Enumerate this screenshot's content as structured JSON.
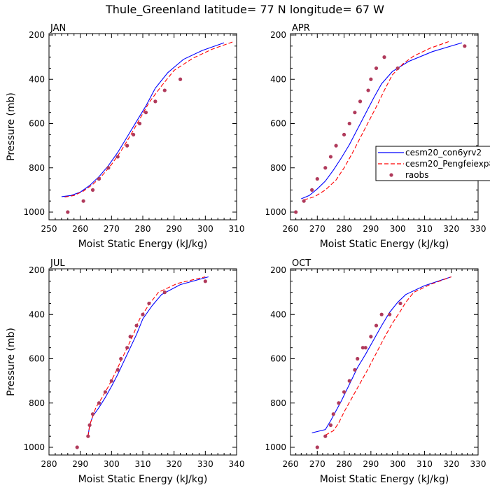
{
  "figure": {
    "title": "Thule_Greenland  latitude= 77 N longitude= 67 W"
  },
  "legend": {
    "entries": [
      {
        "label": "cesm20_con6yrv2",
        "color": "#0000ff",
        "style": "solid"
      },
      {
        "label": "cesm20_Pengfeiexp8",
        "color": "#ff0000",
        "style": "dashed"
      },
      {
        "label": "raobs",
        "color": "#b03a5b",
        "style": "dots"
      }
    ],
    "placement": "right-middle of APR panel"
  },
  "chart_data": [
    {
      "type": "line",
      "panel_label": "JAN",
      "xlabel": "Moist Static Energy (kJ/kg)",
      "ylabel": "Pressure (mb)",
      "xlim": [
        250,
        310
      ],
      "ylim": [
        1000,
        200
      ],
      "xticks": [
        250,
        260,
        270,
        280,
        290,
        300,
        310
      ],
      "yticks": [
        200,
        400,
        600,
        800,
        1000
      ],
      "series": [
        {
          "name": "cesm20_con6yrv2",
          "x": [
            254,
            257,
            260,
            263,
            266,
            269,
            272,
            275,
            278,
            281,
            284,
            288,
            293,
            299,
            306
          ],
          "y": [
            930,
            925,
            910,
            880,
            840,
            790,
            730,
            660,
            590,
            520,
            440,
            370,
            310,
            270,
            235
          ]
        },
        {
          "name": "cesm20_Pengfeiexp8",
          "x": [
            255,
            258,
            261,
            264,
            267,
            270,
            273,
            276,
            279,
            282,
            286,
            290,
            296,
            302,
            309
          ],
          "y": [
            932,
            925,
            905,
            875,
            835,
            785,
            725,
            655,
            580,
            505,
            430,
            360,
            305,
            265,
            230
          ]
        },
        {
          "name": "raobs",
          "x": [
            256,
            261,
            264,
            266,
            269,
            272,
            275,
            277,
            279,
            281,
            284,
            287,
            292
          ],
          "y": [
            1000,
            950,
            900,
            850,
            800,
            750,
            700,
            650,
            600,
            550,
            500,
            450,
            400
          ]
        }
      ]
    },
    {
      "type": "line",
      "panel_label": "APR",
      "xlabel": "Moist Static Energy (kJ/kg)",
      "ylabel": "",
      "xlim": [
        260,
        330
      ],
      "ylim": [
        1000,
        200
      ],
      "xticks": [
        260,
        270,
        280,
        290,
        300,
        310,
        320,
        330
      ],
      "yticks": [
        200,
        400,
        600,
        800,
        1000
      ],
      "series": [
        {
          "name": "cesm20_con6yrv2",
          "x": [
            264,
            267,
            270,
            273,
            276,
            279,
            282,
            285,
            288,
            291,
            294,
            298,
            304,
            313,
            324
          ],
          "y": [
            940,
            925,
            895,
            860,
            810,
            755,
            695,
            625,
            555,
            485,
            420,
            365,
            320,
            275,
            235
          ]
        },
        {
          "name": "cesm20_Pengfeiexp8",
          "x": [
            265,
            269,
            273,
            277,
            280,
            283,
            286,
            289,
            292,
            295,
            298,
            302,
            306,
            312,
            319
          ],
          "y": [
            945,
            930,
            900,
            855,
            800,
            735,
            665,
            595,
            525,
            450,
            380,
            330,
            295,
            260,
            230
          ]
        },
        {
          "name": "raobs",
          "x": [
            262,
            265,
            268,
            270,
            273,
            275,
            277,
            280,
            282,
            284,
            286,
            289,
            290,
            292,
            295,
            300,
            325
          ],
          "y": [
            1000,
            950,
            900,
            850,
            800,
            750,
            700,
            650,
            600,
            550,
            500,
            450,
            400,
            350,
            300,
            350,
            250
          ]
        }
      ]
    },
    {
      "type": "line",
      "panel_label": "JUL",
      "xlabel": "Moist Static Energy (kJ/kg)",
      "ylabel": "Pressure (mb)",
      "xlim": [
        280,
        340
      ],
      "ylim": [
        1000,
        200
      ],
      "xticks": [
        280,
        290,
        300,
        310,
        320,
        330,
        340
      ],
      "yticks": [
        200,
        400,
        600,
        800,
        1000
      ],
      "series": [
        {
          "name": "cesm20_con6yrv2",
          "x": [
            292.5,
            293,
            294,
            296,
            298,
            300,
            302,
            304,
            306,
            308,
            310,
            313,
            316,
            322,
            331
          ],
          "y": [
            950,
            900,
            860,
            820,
            775,
            725,
            670,
            610,
            550,
            490,
            420,
            360,
            310,
            265,
            230
          ]
        },
        {
          "name": "cesm20_Pengfeiexp8",
          "x": [
            292.5,
            293,
            294,
            295,
            297,
            299,
            301,
            303,
            305,
            307,
            309,
            312,
            315,
            321,
            330
          ],
          "y": [
            950,
            900,
            860,
            820,
            775,
            725,
            670,
            610,
            550,
            490,
            420,
            355,
            300,
            260,
            230
          ]
        },
        {
          "name": "raobs",
          "x": [
            289,
            292.5,
            293,
            294,
            296,
            298,
            300,
            302,
            303,
            305,
            306,
            308,
            310,
            312,
            317,
            330
          ],
          "y": [
            1000,
            950,
            900,
            850,
            800,
            750,
            700,
            650,
            600,
            550,
            500,
            450,
            400,
            350,
            300,
            250
          ]
        }
      ]
    },
    {
      "type": "line",
      "panel_label": "OCT",
      "xlabel": "Moist Static Energy (kJ/kg)",
      "ylabel": "",
      "xlim": [
        260,
        330
      ],
      "ylim": [
        1000,
        200
      ],
      "xticks": [
        260,
        270,
        280,
        290,
        300,
        310,
        320,
        330
      ],
      "yticks": [
        200,
        400,
        600,
        800,
        1000
      ],
      "series": [
        {
          "name": "cesm20_con6yrv2",
          "x": [
            268,
            273,
            275,
            277,
            279,
            281,
            283,
            285,
            288,
            291,
            294,
            297,
            300,
            303,
            310,
            320
          ],
          "y": [
            935,
            920,
            880,
            835,
            790,
            740,
            690,
            640,
            580,
            515,
            450,
            390,
            345,
            310,
            270,
            230
          ]
        },
        {
          "name": "cesm20_Pengfeiexp8",
          "x": [
            273,
            276,
            278,
            280,
            283,
            286,
            289,
            292,
            295,
            298,
            301,
            303,
            306,
            312,
            320
          ],
          "y": [
            945,
            925,
            890,
            840,
            775,
            710,
            645,
            575,
            505,
            440,
            385,
            345,
            300,
            265,
            230
          ]
        },
        {
          "name": "raobs",
          "x": [
            270,
            273,
            275,
            276,
            278,
            280,
            282,
            284,
            285,
            287,
            288,
            290,
            292,
            294,
            297,
            301
          ],
          "y": [
            1000,
            950,
            900,
            850,
            800,
            750,
            700,
            650,
            600,
            550,
            550,
            500,
            450,
            400,
            400,
            350
          ]
        }
      ]
    }
  ]
}
